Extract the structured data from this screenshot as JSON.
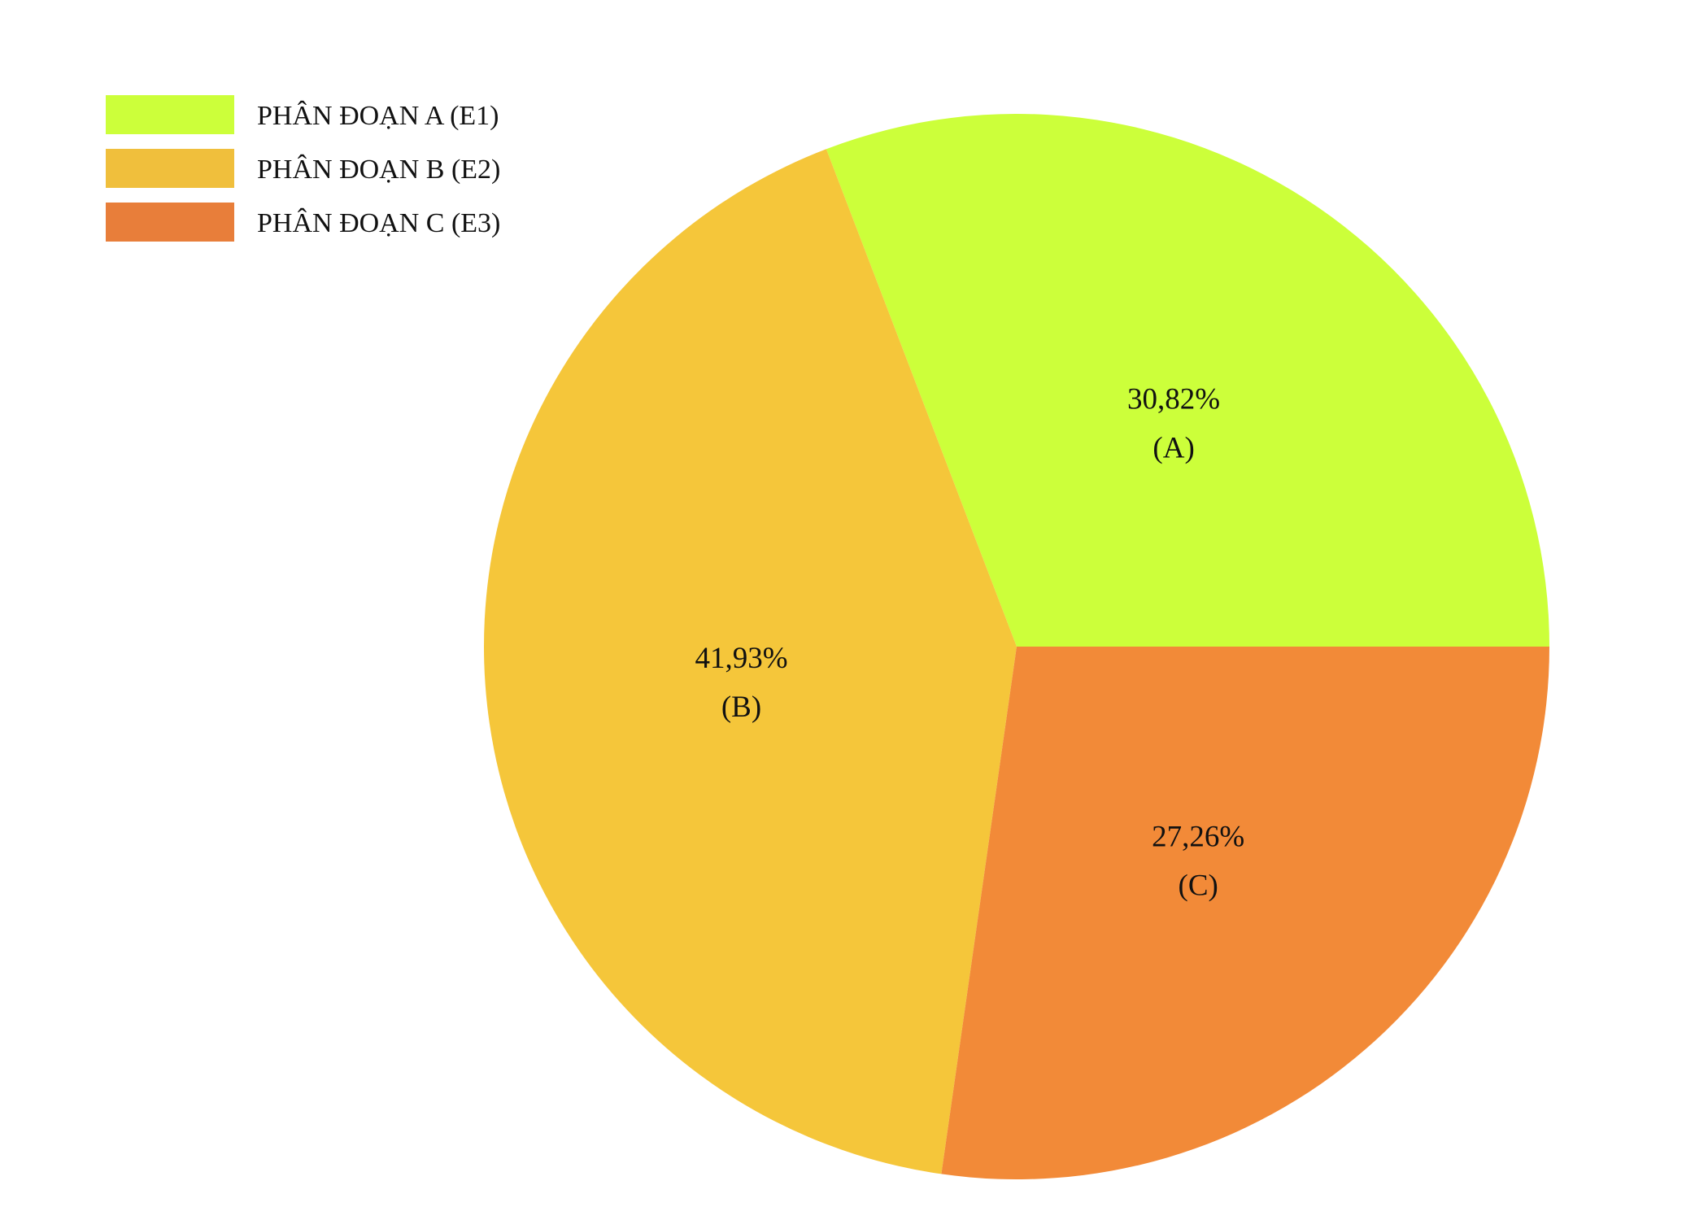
{
  "chart_data": {
    "type": "pie",
    "title": "",
    "legend_position": "top-left",
    "slices": [
      {
        "legend": "PHÂN ĐOẠN A (E1)",
        "value": 30.82,
        "value_label": "30,82%",
        "short_label": "(A)",
        "color": "#CCFF3A"
      },
      {
        "legend": "PHÂN ĐOẠN B (E2)",
        "value": 41.93,
        "value_label": "41,93%",
        "short_label": "(B)",
        "color": "#F5C63A"
      },
      {
        "legend": "PHÂN ĐOẠN C (E3)",
        "value": 27.26,
        "value_label": "27,26%",
        "short_label": "(C)",
        "color": "#F28A38"
      }
    ],
    "legend_colors": [
      "#CCFF3A",
      "#F0BF3C",
      "#E87E3A"
    ]
  }
}
